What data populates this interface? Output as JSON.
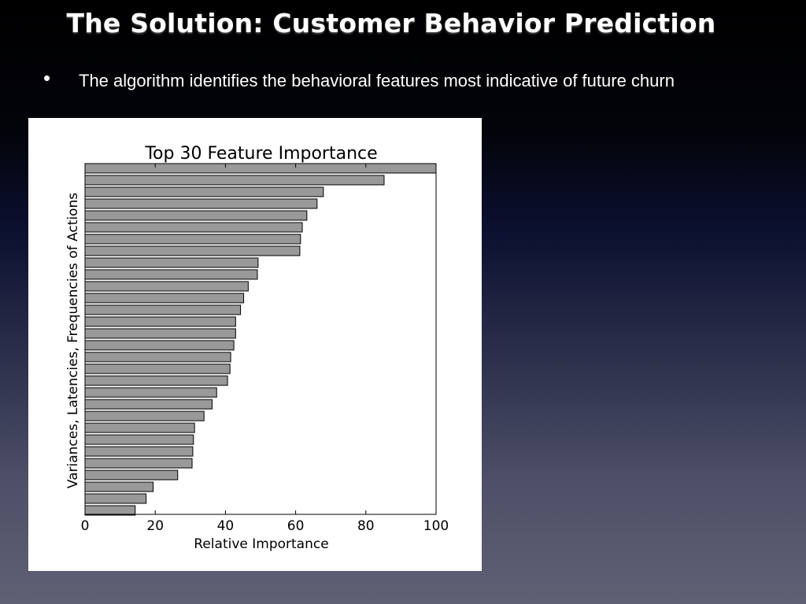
{
  "slide": {
    "title": "The Solution: Customer Behavior Prediction",
    "bullet": "The algorithm identifies the behavioral features most indicative of future churn"
  },
  "colors": {
    "bar_fill": "#999999",
    "bar_stroke": "#000000",
    "card_background": "#ffffff",
    "text": "#ffffff"
  },
  "chart_data": {
    "type": "bar",
    "orientation": "horizontal",
    "title": "Top 30 Feature Importance",
    "xlabel": "Relative Importance",
    "ylabel": "Variances, Latencies, Frequencies of Actions",
    "xlim": [
      0,
      100
    ],
    "xticks": [
      "0",
      "20",
      "40",
      "60",
      "80",
      "100"
    ],
    "grid": false,
    "values": [
      100,
      85.2,
      67.9,
      66.1,
      63.2,
      61.9,
      61.4,
      61.2,
      49.3,
      49.1,
      46.5,
      45.2,
      44.3,
      42.9,
      42.9,
      42.4,
      41.5,
      41.3,
      40.6,
      37.5,
      36.2,
      33.9,
      31.2,
      30.9,
      30.7,
      30.5,
      26.4,
      19.4,
      17.4,
      14.3
    ]
  }
}
